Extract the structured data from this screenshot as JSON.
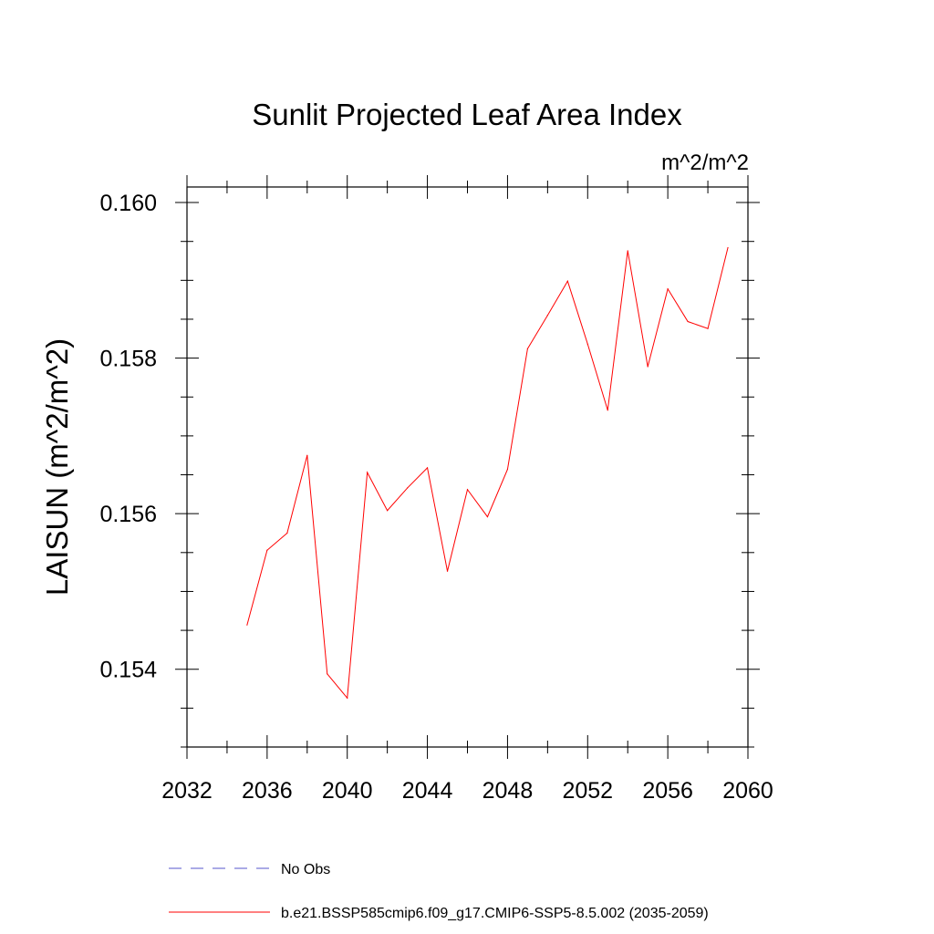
{
  "chart_data": {
    "type": "line",
    "title": "Sunlit Projected Leaf Area Index",
    "units_label": "m^2/m^2",
    "ylabel": "LAISUN  (m^2/m^2)",
    "xlabel": "",
    "xlim": [
      2032,
      2060
    ],
    "ylim": [
      0.153,
      0.1602
    ],
    "x_ticks": [
      2032,
      2036,
      2040,
      2044,
      2048,
      2052,
      2056,
      2060
    ],
    "x_tick_labels": [
      "2032",
      "2036",
      "2040",
      "2044",
      "2048",
      "2052",
      "2056",
      "2060"
    ],
    "y_ticks": [
      0.154,
      0.156,
      0.158,
      0.16
    ],
    "y_tick_labels": [
      "0.154",
      "0.156",
      "0.158",
      "0.160"
    ],
    "grid": false,
    "legend_position": "bottom",
    "series": [
      {
        "name": "b.e21.BSSP585cmip6.f09_g17.CMIP6-SSP5-8.5.002 (2035-2059)",
        "color": "#ff0000",
        "dash": "solid",
        "x": [
          2035,
          2036,
          2037,
          2038,
          2039,
          2040,
          2041,
          2042,
          2043,
          2044,
          2045,
          2046,
          2047,
          2048,
          2049,
          2050,
          2051,
          2052,
          2053,
          2054,
          2055,
          2056,
          2057,
          2058,
          2059
        ],
        "y": [
          0.15457,
          0.15553,
          0.15575,
          0.15675,
          0.15394,
          0.15363,
          0.15653,
          0.15604,
          0.15633,
          0.15659,
          0.15526,
          0.15631,
          0.15596,
          0.15657,
          0.15812,
          0.15855,
          0.15899,
          0.15818,
          0.15733,
          0.15938,
          0.15789,
          0.15889,
          0.15847,
          0.15838,
          0.15942
        ]
      }
    ],
    "legend": [
      {
        "label": "No Obs",
        "color": "#5555cc",
        "dash": "dashed"
      },
      {
        "label": "b.e21.BSSP585cmip6.f09_g17.CMIP6-SSP5-8.5.002 (2035-2059)",
        "color": "#ff0000",
        "dash": "solid"
      }
    ]
  }
}
